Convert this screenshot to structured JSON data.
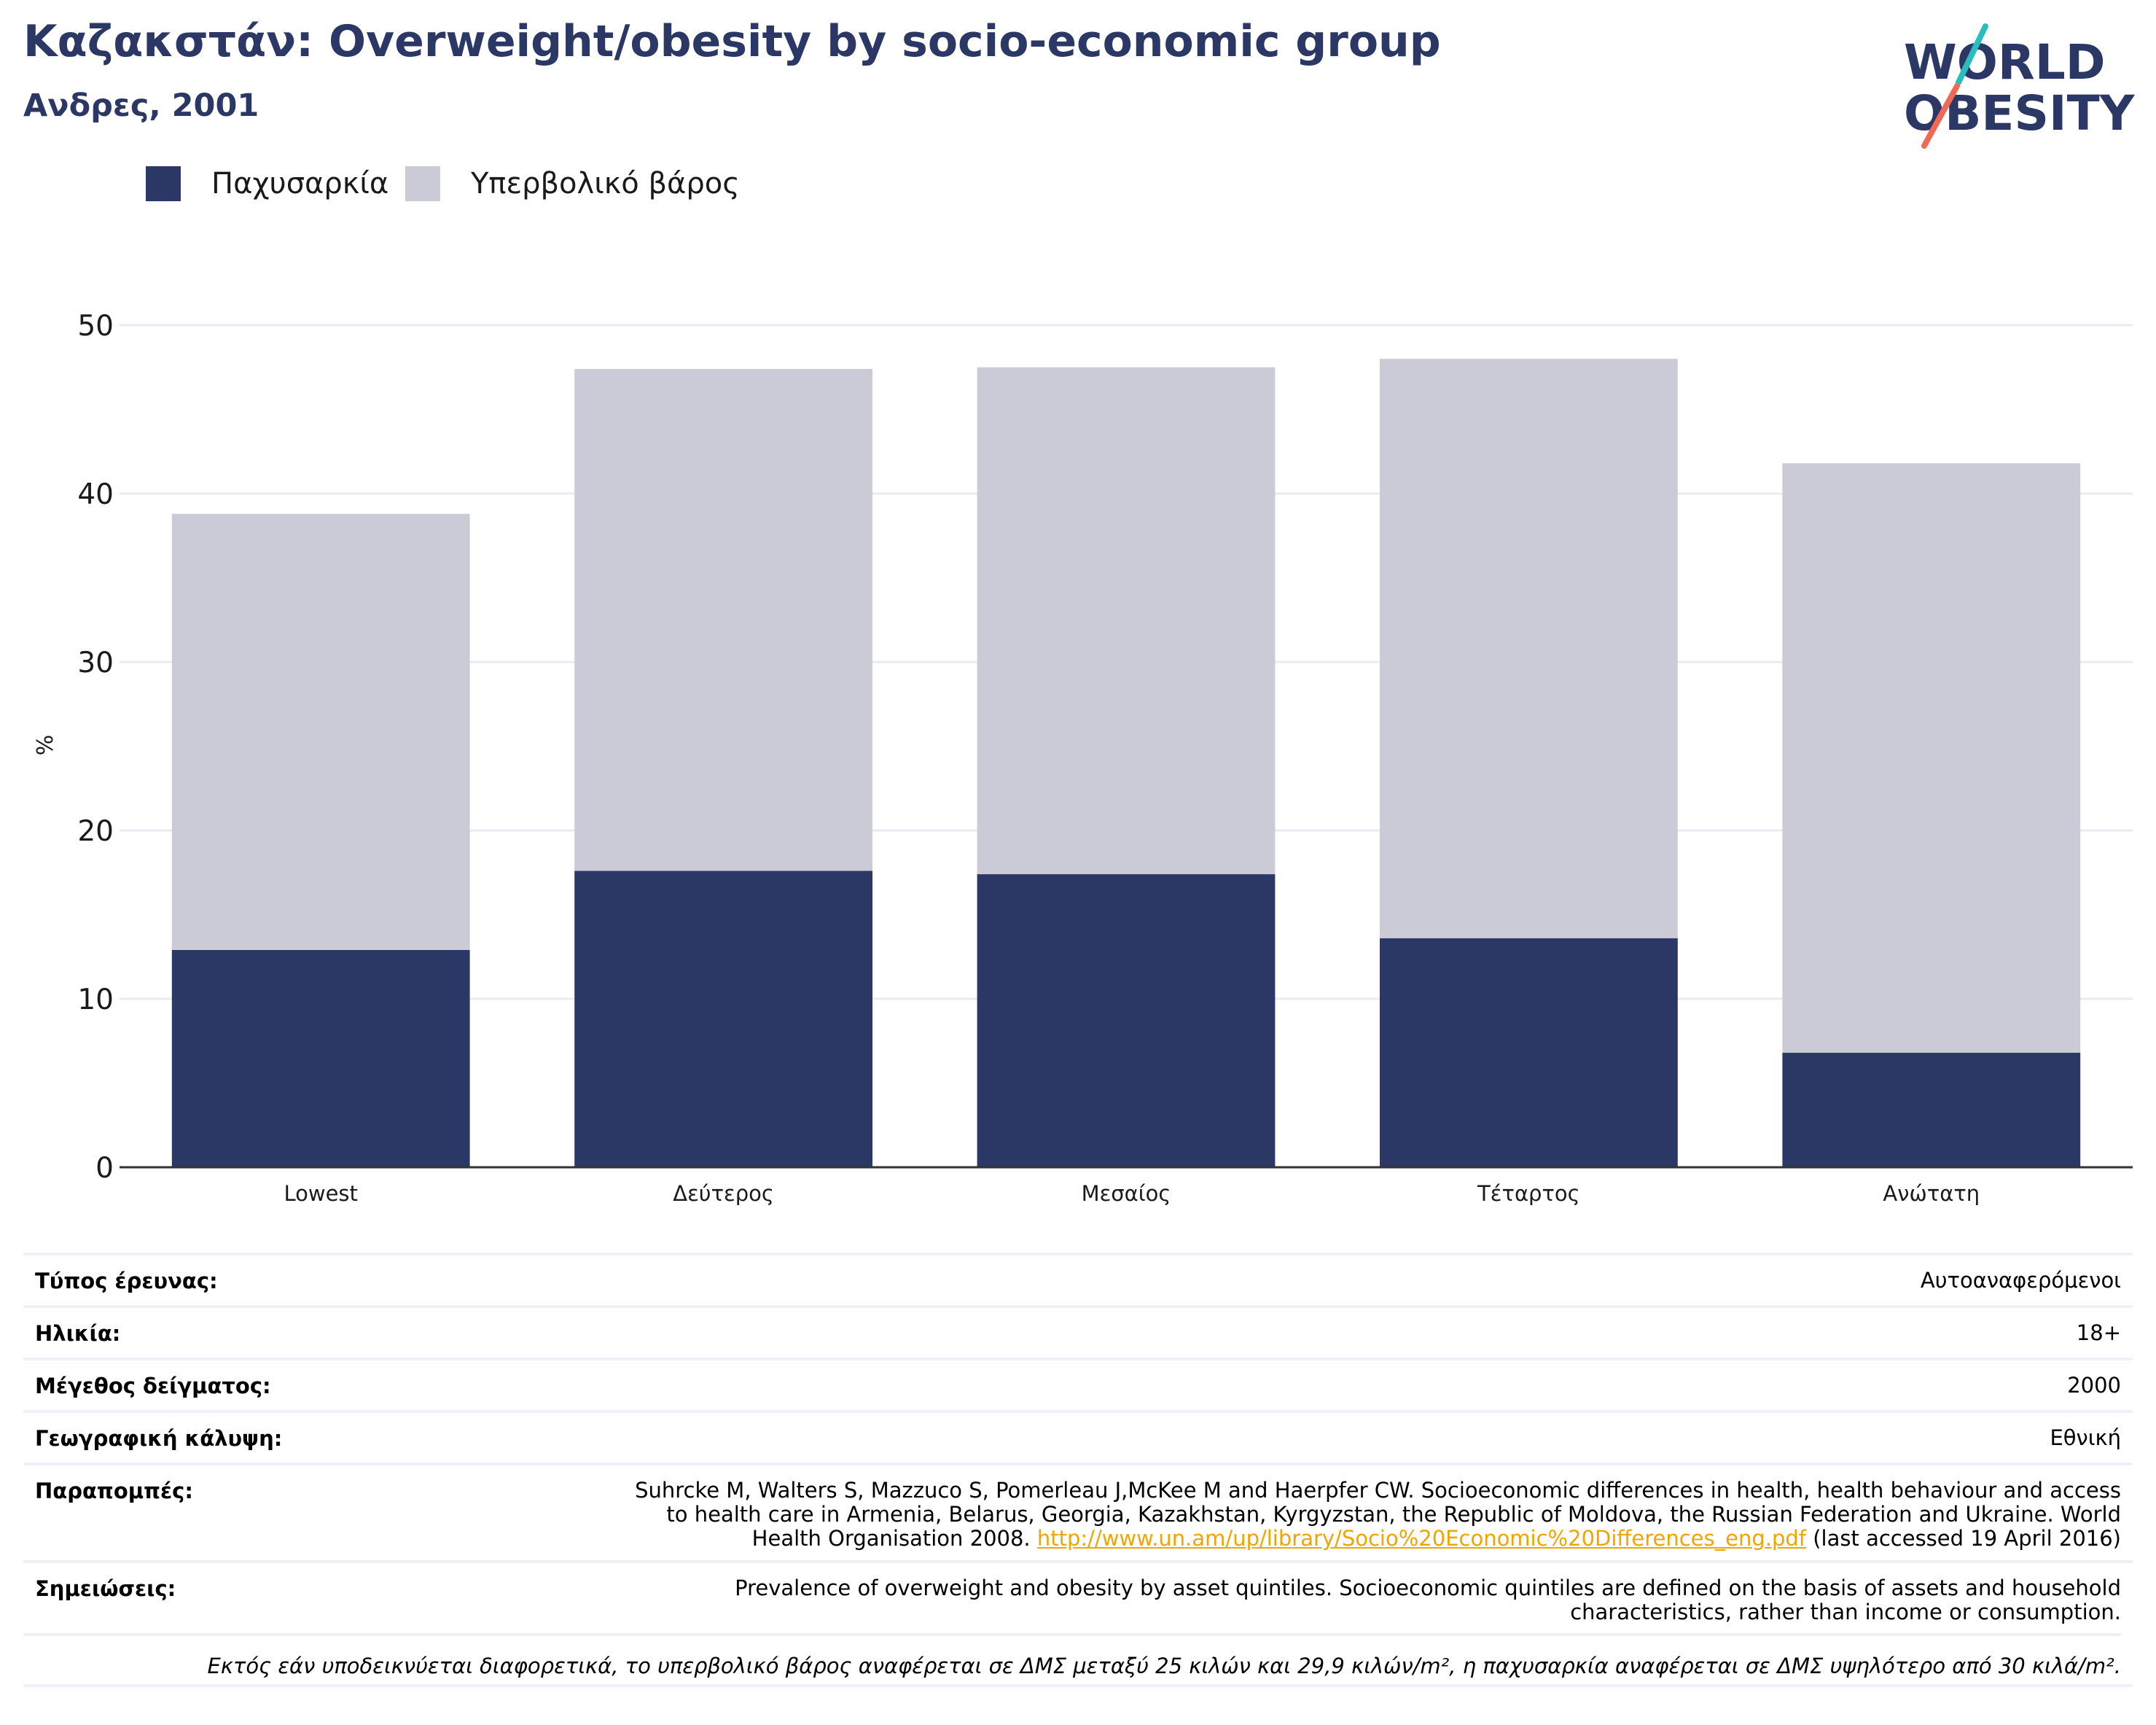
{
  "header": {
    "title": "Καζακστάν: Overweight/obesity by socio-economic group",
    "subtitle": "Ανδρες, 2001"
  },
  "logo": {
    "line1": "WORLD",
    "line2": "OBESITY",
    "colors": {
      "navy": "#2b3764",
      "teal": "#2bbcbf",
      "coral": "#ee6a56"
    }
  },
  "colors": {
    "obesity": "#2b3764",
    "overweight": "#cacbd7",
    "gridline": "#e9ebf2",
    "axis": "#333333"
  },
  "legend": {
    "items": [
      {
        "label": "Παχυσαρκία",
        "color": "#2b3764"
      },
      {
        "label": "Υπερβολικό βάρος",
        "color": "#cacbd7"
      }
    ]
  },
  "chart_data": {
    "type": "bar",
    "stacked": true,
    "title": "",
    "xlabel": "",
    "ylabel": "%",
    "ylim": [
      0,
      50
    ],
    "yticks": [
      0,
      10,
      20,
      30,
      40,
      50
    ],
    "grid": true,
    "legend_position": "top-left",
    "categories": [
      "Lowest",
      "Δεύτερος",
      "Μεσαίος",
      "Τέταρτος",
      "Ανώτατη"
    ],
    "series": [
      {
        "name": "Παχυσαρκία",
        "color": "#2b3764",
        "values": [
          12.9,
          17.6,
          17.4,
          13.6,
          6.8
        ]
      },
      {
        "name": "Υπερβολικό βάρος",
        "color": "#cacbd7",
        "values": [
          25.9,
          29.8,
          30.1,
          34.4,
          35.0
        ]
      }
    ]
  },
  "info": {
    "survey_type": {
      "label": "Τύπος έρευνας:",
      "value": "Αυτοαναφερόμενοι"
    },
    "age": {
      "label": "Ηλικία:",
      "value": "18+"
    },
    "sample_size": {
      "label": "Μέγεθος δείγματος:",
      "value": "2000"
    },
    "coverage": {
      "label": "Γεωγραφική κάλυψη:",
      "value": "Εθνική"
    },
    "references": {
      "label": "Παραπομπές:",
      "line1": "Suhrcke M, Walters S, Mazzuco S, Pomerleau J,McKee M and Haerpfer CW. Socioeconomic differences in health, health behaviour and access",
      "line2": "to health care in Armenia, Belarus, Georgia, Kazakhstan, Kyrgyzstan, the Republic of Moldova, the Russian Federation and Ukraine. World",
      "line3_prefix": "Health Organisation 2008.",
      "link": "http://www.un.am/up/library/Socio%20Economic%20Differences_eng.pdf",
      "line3_suffix": "(last accessed 19 April 2016)"
    },
    "notes": {
      "label": "Σημειώσεις:",
      "line1": "Prevalence of overweight and obesity by asset quintiles. Socioeconomic quintiles are defined on the basis of assets and household",
      "line2": "characteristics, rather than income or consumption."
    }
  },
  "footnote": "Εκτός εάν υποδεικνύεται διαφορετικά, το υπερβολικό βάρος αναφέρεται σε ΔΜΣ μεταξύ 25 κιλών και 29,9 κιλών/m², η παχυσαρκία αναφέρεται σε ΔΜΣ υψηλότερο από 30 κιλά/m²."
}
